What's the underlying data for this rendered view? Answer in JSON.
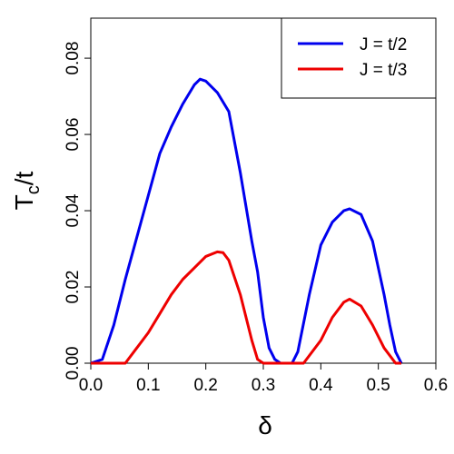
{
  "chart_data": {
    "type": "line",
    "xlabel": "δ",
    "ylabel": [
      "T",
      "c",
      "/t"
    ],
    "xlim": [
      0,
      0.6
    ],
    "ylim": [
      0,
      0.0905
    ],
    "xticks": [
      {
        "value": 0,
        "label": "0.0"
      },
      {
        "value": 0.1,
        "label": "0.1"
      },
      {
        "value": 0.2,
        "label": "0.2"
      },
      {
        "value": 0.3,
        "label": "0.3"
      },
      {
        "value": 0.4,
        "label": "0.4"
      },
      {
        "value": 0.5,
        "label": "0.5"
      },
      {
        "value": 0.6,
        "label": "0.6"
      }
    ],
    "yticks": [
      {
        "value": 0,
        "label": "0.00"
      },
      {
        "value": 0.02,
        "label": "0.02"
      },
      {
        "value": 0.04,
        "label": "0.04"
      },
      {
        "value": 0.06,
        "label": "0.06"
      },
      {
        "value": 0.08,
        "label": "0.08"
      }
    ],
    "legend": "top-right",
    "series": [
      {
        "name": "J = t/2",
        "color": "#0000ee",
        "x": [
          0,
          0.02,
          0.04,
          0.06,
          0.08,
          0.1,
          0.12,
          0.14,
          0.16,
          0.18,
          0.19,
          0.2,
          0.22,
          0.24,
          0.26,
          0.28,
          0.29,
          0.3,
          0.31,
          0.32,
          0.33,
          0.35,
          0.36,
          0.38,
          0.4,
          0.42,
          0.44,
          0.45,
          0.47,
          0.49,
          0.51,
          0.52,
          0.53,
          0.54
        ],
        "values": [
          0,
          0.001,
          0.01,
          0.022,
          0.033,
          0.044,
          0.055,
          0.062,
          0.068,
          0.073,
          0.0745,
          0.074,
          0.071,
          0.066,
          0.05,
          0.032,
          0.024,
          0.012,
          0.004,
          0.001,
          0,
          0,
          0.003,
          0.018,
          0.031,
          0.037,
          0.04,
          0.0405,
          0.039,
          0.032,
          0.018,
          0.01,
          0.003,
          0
        ]
      },
      {
        "name": "J = t/3",
        "color": "#ee0000",
        "x": [
          0,
          0.06,
          0.08,
          0.1,
          0.12,
          0.14,
          0.16,
          0.18,
          0.2,
          0.22,
          0.23,
          0.24,
          0.26,
          0.28,
          0.29,
          0.3,
          0.37,
          0.4,
          0.42,
          0.44,
          0.45,
          0.47,
          0.49,
          0.51,
          0.53,
          0.54
        ],
        "values": [
          0,
          0,
          0.004,
          0.008,
          0.013,
          0.018,
          0.022,
          0.025,
          0.028,
          0.0292,
          0.029,
          0.027,
          0.018,
          0.006,
          0.001,
          0,
          0,
          0.006,
          0.012,
          0.016,
          0.0168,
          0.015,
          0.01,
          0.004,
          0,
          0
        ]
      }
    ]
  }
}
